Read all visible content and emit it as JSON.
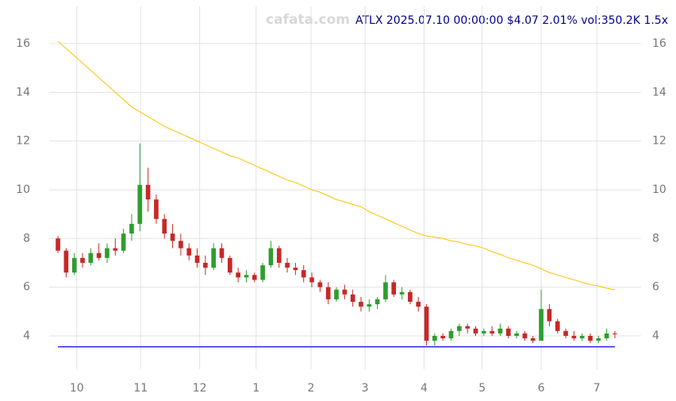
{
  "chart_data": {
    "type": "candlestick",
    "title": "ATLX 2025.07.10 00:00:00 $4.07 2.01% vol:350.2K 1.5x",
    "watermark": "cafata.com",
    "open": [
      8.0,
      7.5,
      6.6,
      7.2,
      7.0,
      7.4,
      7.2,
      7.6,
      7.5,
      8.2,
      8.6,
      10.2,
      9.6,
      8.8,
      8.2,
      7.9,
      7.6,
      7.3,
      7.0,
      6.8,
      7.6,
      7.2,
      6.6,
      6.4,
      6.5,
      6.3,
      6.9,
      7.6,
      7.0,
      6.8,
      6.7,
      6.4,
      6.2,
      6.0,
      5.5,
      5.9,
      5.7,
      5.4,
      5.2,
      5.3,
      5.5,
      6.2,
      5.7,
      5.8,
      5.4,
      5.2,
      3.8,
      4.0,
      3.9,
      4.2,
      4.4,
      4.3,
      4.1,
      4.2,
      4.1,
      4.3,
      4.0,
      4.1,
      3.9,
      3.8,
      5.1,
      4.6,
      4.2,
      4.0,
      3.9,
      4.0,
      3.8,
      3.9,
      4.1
    ],
    "high": [
      8.1,
      7.6,
      7.4,
      7.4,
      7.6,
      7.8,
      7.8,
      8.0,
      8.4,
      9.0,
      11.9,
      10.9,
      9.8,
      9.0,
      8.6,
      8.2,
      7.8,
      7.6,
      7.3,
      7.8,
      7.8,
      7.3,
      6.8,
      6.7,
      6.6,
      7.0,
      7.9,
      7.7,
      7.2,
      7.0,
      6.9,
      6.6,
      6.3,
      6.2,
      6.0,
      6.1,
      5.9,
      5.6,
      5.5,
      5.6,
      6.5,
      6.3,
      6.0,
      5.9,
      5.6,
      5.3,
      4.1,
      4.1,
      4.3,
      4.5,
      4.5,
      4.4,
      4.3,
      4.4,
      4.5,
      4.4,
      4.2,
      4.2,
      4.0,
      5.9,
      5.3,
      4.7,
      4.3,
      4.2,
      4.1,
      4.1,
      4.0,
      4.3,
      4.2
    ],
    "low": [
      7.4,
      6.4,
      6.5,
      6.8,
      6.9,
      7.1,
      7.0,
      7.3,
      7.4,
      7.9,
      8.3,
      9.1,
      8.6,
      8.0,
      7.6,
      7.3,
      7.1,
      6.8,
      6.5,
      6.7,
      7.0,
      6.5,
      6.2,
      6.2,
      6.2,
      6.2,
      6.8,
      6.8,
      6.6,
      6.5,
      6.2,
      6.0,
      5.8,
      5.3,
      5.4,
      5.5,
      5.2,
      5.0,
      5.0,
      5.1,
      5.4,
      5.6,
      5.5,
      5.3,
      5.0,
      3.6,
      3.6,
      3.8,
      3.8,
      4.0,
      4.1,
      4.0,
      4.0,
      4.0,
      4.0,
      3.9,
      3.9,
      3.8,
      3.7,
      3.8,
      4.4,
      4.1,
      3.9,
      3.8,
      3.8,
      3.7,
      3.7,
      3.8,
      3.9
    ],
    "close": [
      7.5,
      6.6,
      7.2,
      7.0,
      7.4,
      7.2,
      7.6,
      7.5,
      8.2,
      8.6,
      10.2,
      9.6,
      8.8,
      8.2,
      7.9,
      7.6,
      7.3,
      7.0,
      6.8,
      7.6,
      7.2,
      6.6,
      6.4,
      6.5,
      6.3,
      6.9,
      7.6,
      7.0,
      6.8,
      6.7,
      6.4,
      6.2,
      6.0,
      5.5,
      5.9,
      5.7,
      5.4,
      5.2,
      5.3,
      5.5,
      6.2,
      5.7,
      5.8,
      5.4,
      5.2,
      3.8,
      4.0,
      3.9,
      4.2,
      4.4,
      4.3,
      4.1,
      4.2,
      4.1,
      4.3,
      4.0,
      4.1,
      3.9,
      3.8,
      5.1,
      4.6,
      4.2,
      4.0,
      3.9,
      4.0,
      3.8,
      3.9,
      4.1,
      4.07
    ],
    "ma": {
      "color": "#ffc000",
      "values": [
        16.1,
        15.8,
        15.5,
        15.2,
        14.9,
        14.6,
        14.3,
        14.0,
        13.7,
        13.4,
        13.2,
        13.0,
        12.8,
        12.6,
        12.45,
        12.3,
        12.15,
        12.0,
        11.85,
        11.7,
        11.55,
        11.4,
        11.3,
        11.15,
        11.0,
        10.85,
        10.7,
        10.55,
        10.4,
        10.3,
        10.15,
        10.0,
        9.9,
        9.75,
        9.6,
        9.5,
        9.4,
        9.3,
        9.1,
        8.95,
        8.8,
        8.65,
        8.5,
        8.35,
        8.2,
        8.1,
        8.05,
        8.0,
        7.9,
        7.85,
        7.75,
        7.7,
        7.6,
        7.45,
        7.35,
        7.2,
        7.1,
        7.0,
        6.9,
        6.75,
        6.6,
        6.5,
        6.4,
        6.3,
        6.2,
        6.1,
        6.05,
        5.95,
        5.9
      ]
    },
    "hline": {
      "value": 3.55,
      "color": "#0000ff"
    },
    "up_color": "#2e9e2e",
    "down_color": "#c62828",
    "ylim": [
      2.63,
      17.53
    ],
    "yticks": [
      4,
      6,
      8,
      10,
      12,
      14,
      16
    ],
    "xlim": [
      -1.07,
      71.2
    ],
    "xticks": [
      {
        "value": 2.3,
        "label": "10"
      },
      {
        "value": 10.1,
        "label": "11"
      },
      {
        "value": 17.3,
        "label": "12"
      },
      {
        "value": 24.2,
        "label": "1"
      },
      {
        "value": 30.9,
        "label": "2"
      },
      {
        "value": 37.5,
        "label": "3"
      },
      {
        "value": 44.7,
        "label": "4"
      },
      {
        "value": 51.8,
        "label": "5"
      },
      {
        "value": 59.0,
        "label": "6"
      },
      {
        "value": 65.8,
        "label": "7"
      }
    ],
    "grid": true
  }
}
